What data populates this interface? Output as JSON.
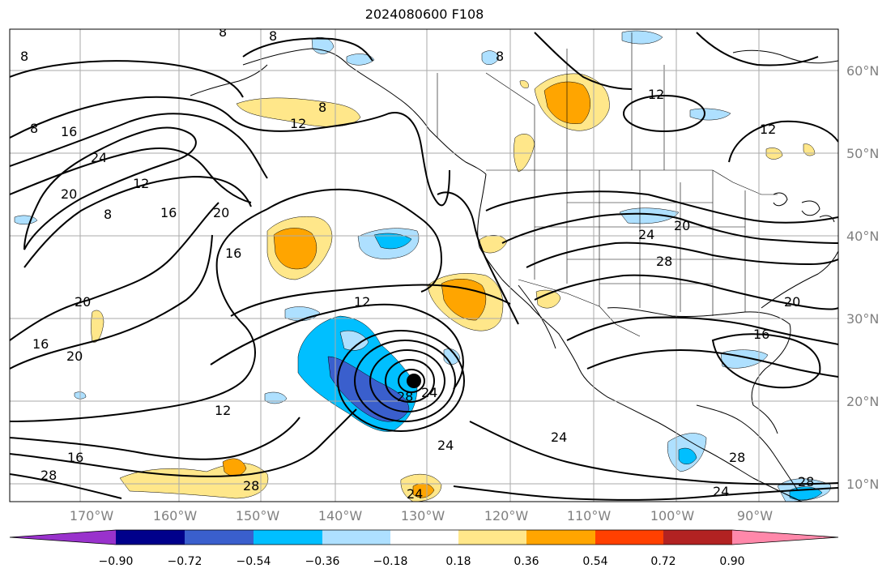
{
  "title": "2024080600 F108",
  "lat_labels": [
    "60°N",
    "50°N",
    "40°N",
    "30°N",
    "20°N",
    "10°N"
  ],
  "lon_labels": [
    "170°W",
    "160°W",
    "150°W",
    "140°W",
    "130°W",
    "120°W",
    "110°W",
    "100°W",
    "90°W"
  ],
  "colorbar": {
    "colors": [
      "#9932cc",
      "#00008b",
      "#3a5fcd",
      "#00bfff",
      "#aee0ff",
      "#ffffff",
      "#ffe78a",
      "#ffa500",
      "#ff4000",
      "#b22222",
      "#ff88aa"
    ],
    "labels": [
      "−0.90",
      "−0.72",
      "−0.54",
      "−0.36",
      "−0.18",
      "0.18",
      "0.36",
      "0.54",
      "0.72",
      "0.90"
    ]
  },
  "contour_labels": [
    "8",
    "8",
    "8",
    "8",
    "8",
    "8",
    "16",
    "24",
    "20",
    "12",
    "8",
    "16",
    "20",
    "16",
    "20",
    "16",
    "20",
    "12",
    "12",
    "12",
    "12",
    "24",
    "20",
    "28",
    "16",
    "20",
    "28",
    "24",
    "24",
    "28",
    "12",
    "16",
    "28",
    "28",
    "24",
    "28",
    "24",
    "24"
  ],
  "marker": "storm-center"
}
